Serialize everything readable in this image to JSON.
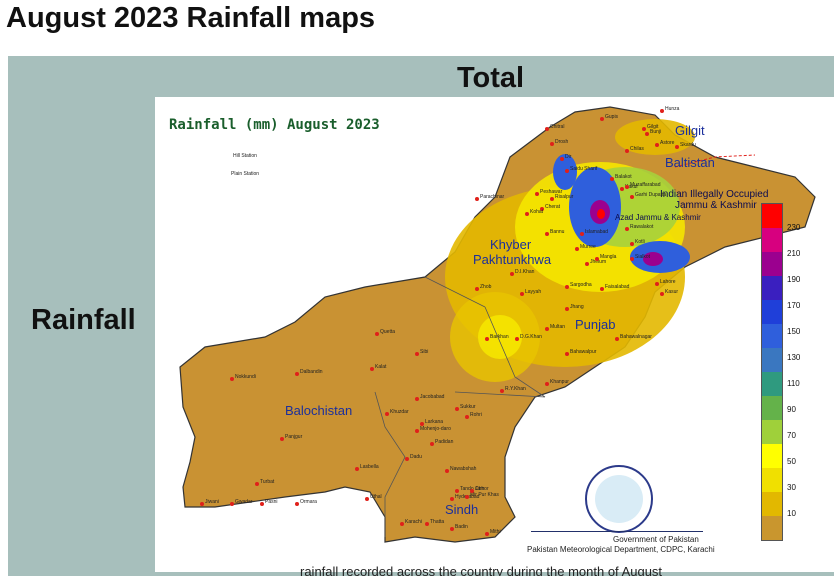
{
  "slide_title": "August 2023 Rainfall maps",
  "panel": {
    "column_header": "Total",
    "row_header": "Rainfall"
  },
  "map": {
    "title": "Rainfall (mm) August 2023",
    "legend_hill": "Hill Station",
    "legend_plain": "Plain Station",
    "provinces": {
      "gilgit": "Gilgit",
      "baltistan": "Baltistan",
      "kashmir_l1": "Indian Illegally Occupied",
      "kashmir_l2": "Jammu & Kashmir",
      "ajk": "Azad Jammu & Kashmir",
      "kp_l1": "Khyber",
      "kp_l2": "Pakhtunkhwa",
      "punjab": "Punjab",
      "balochistan": "Balochistan",
      "sindh": "Sindh"
    },
    "cities": [
      "Chitral",
      "Drosh",
      "Dir",
      "Gupis",
      "Gilgit",
      "Hunza",
      "Astore",
      "Skardu",
      "Bunji",
      "Chilas",
      "Saidu Sharif",
      "Balakot",
      "Kakul",
      "Muzaffarabad",
      "Garhi Dupatta",
      "Rawalakot",
      "Kotli",
      "Peshawar",
      "Risalpur",
      "Cherat",
      "Kohat",
      "Parachinar",
      "Bannu",
      "D.I.Khan",
      "Murree",
      "Islamabad",
      "Jhelum",
      "Mangla",
      "Sialkot",
      "Lahore",
      "Kasur",
      "Faisalabad",
      "Sargodha",
      "Jhang",
      "Layyah",
      "Zhob",
      "Barkhan",
      "Bahawalnagar",
      "Bahawalpur",
      "Multan",
      "D.G.Khan",
      "Khanpur",
      "R.Y.Khan",
      "Jacobabad",
      "Sukkur",
      "Rohri",
      "Larkana",
      "Mohenjo-daro",
      "Dadu",
      "Padidan",
      "Nawabshah",
      "Hyderabad",
      "Tando Jam",
      "Mir Pur Khas",
      "Chhor",
      "Thatta",
      "Karachi",
      "Badin",
      "Mithi",
      "Quetta",
      "Sibi",
      "Kalat",
      "Khuzdar",
      "Dalbandin",
      "Nokkundi",
      "Panjgur",
      "Lasbella",
      "Turbat",
      "Jiwani",
      "Gwadar",
      "Pasni",
      "Ormara",
      "Uthal"
    ],
    "colorbar": {
      "ticks": [
        "230",
        "210",
        "190",
        "170",
        "150",
        "130",
        "110",
        "90",
        "70",
        "50",
        "30",
        "10"
      ],
      "colors": [
        "#ff0000",
        "#d7007f",
        "#9b008f",
        "#3a1fbf",
        "#1f3fd9",
        "#2f5fdc",
        "#3a77c0",
        "#2f9a7f",
        "#64b24a",
        "#9fd03a",
        "#ffff00",
        "#f0e000",
        "#e2b800",
        "#c9962e"
      ]
    },
    "gov_line1": "Government of Pakistan",
    "gov_line2": "Pakistan Meteorological Department, CDPC, Karachi"
  },
  "bottom_fragment": "rainfall recorded across the country during the month of August"
}
